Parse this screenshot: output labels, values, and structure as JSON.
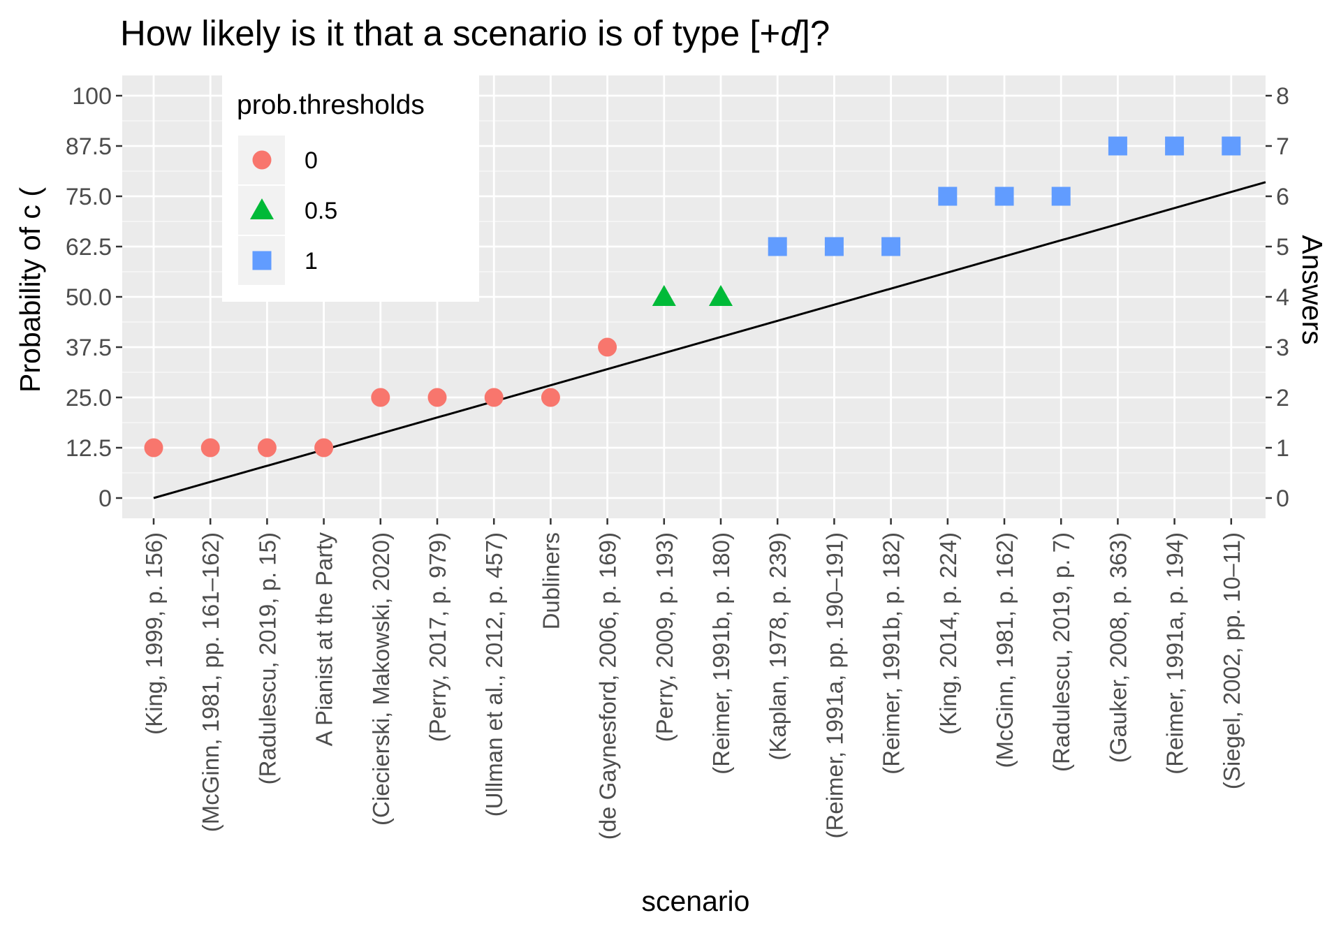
{
  "chart_data": {
    "type": "scatter",
    "title_prefix": "How likely is it that a scenario is of type [+",
    "title_italic": "d",
    "title_suffix": "]?",
    "xlabel": "scenario",
    "ylabel_left": "Probability of c (",
    "ylabel_right": "Answers",
    "categories": [
      "(King, 1999, p. 156)",
      "(McGinn, 1981, pp. 161–162)",
      "(Radulescu, 2019, p. 15)",
      "A Pianist at the Party",
      "(Ciecierski, Makowski, 2020)",
      "(Perry, 2017, p. 979)",
      "(Ullman et al., 2012, p. 457)",
      "Dubliners",
      "(de Gaynesford, 2006, p. 169)",
      "(Perry, 2009, p. 193)",
      "(Reimer, 1991b, p. 180)",
      "(Kaplan, 1978, p. 239)",
      "(Reimer, 1991a, pp. 190–191)",
      "(Reimer, 1991b, p. 182)",
      "(King, 2014, p. 224)",
      "(McGinn, 1981, p. 162)",
      "(Radulescu, 2019, p. 7)",
      "(Gauker, 2008, p. 363)",
      "(Reimer, 1991a, p. 194)",
      "(Siegel, 2002, pp. 10–11)"
    ],
    "values": [
      12.5,
      12.5,
      12.5,
      12.5,
      25.0,
      25.0,
      25.0,
      25.0,
      37.5,
      50.0,
      50.0,
      62.5,
      62.5,
      62.5,
      75.0,
      75.0,
      75.0,
      87.5,
      87.5,
      87.5
    ],
    "thresholds": [
      "0",
      "0",
      "0",
      "0",
      "0",
      "0",
      "0",
      "0",
      "0",
      "0.5",
      "0.5",
      "1",
      "1",
      "1",
      "1",
      "1",
      "1",
      "1",
      "1",
      "1"
    ],
    "ylim": [
      0,
      100
    ],
    "yticks_left": [
      "0",
      "12.5",
      "25.0",
      "37.5",
      "50.0",
      "62.5",
      "75.0",
      "87.5",
      "100"
    ],
    "yticks_right": [
      "0",
      "1",
      "2",
      "3",
      "4",
      "5",
      "6",
      "7",
      "8"
    ],
    "trend_line": {
      "from_category_index": 0,
      "from_value": 0,
      "to_value_at_right_edge": 78.5
    },
    "grid": true,
    "legend": {
      "title": "prob.thresholds",
      "placement": "top-left",
      "entries": [
        {
          "label": "0",
          "shape": "circle",
          "color": "#f8766d"
        },
        {
          "label": "0.5",
          "shape": "triangle",
          "color": "#00ba38"
        },
        {
          "label": "1",
          "shape": "square",
          "color": "#619cff"
        }
      ]
    },
    "colors": {
      "panel_background": "#ebebeb",
      "grid_major": "#ffffff",
      "trend_line": "#000000"
    }
  }
}
